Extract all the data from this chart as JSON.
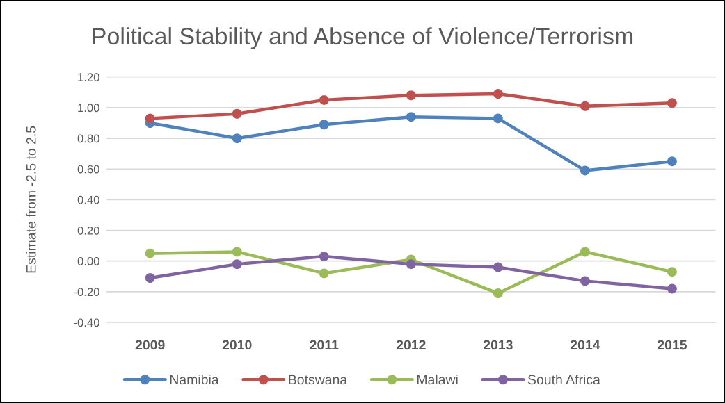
{
  "chart_data": {
    "type": "line",
    "title": "Political Stability and Absence of Violence/Terrorism",
    "ylabel": "Estimate from -2.5 to 2.5",
    "categories": [
      "2009",
      "2010",
      "2011",
      "2012",
      "2013",
      "2014",
      "2015"
    ],
    "series": [
      {
        "name": "Namibia",
        "color": "#4f81bd",
        "values": [
          0.9,
          0.8,
          0.89,
          0.94,
          0.93,
          0.59,
          0.65
        ]
      },
      {
        "name": "Botswana",
        "color": "#c0504d",
        "values": [
          0.93,
          0.96,
          1.05,
          1.08,
          1.09,
          1.01,
          1.03
        ]
      },
      {
        "name": "Malawi",
        "color": "#9bbb59",
        "values": [
          0.05,
          0.06,
          -0.08,
          0.01,
          -0.21,
          0.06,
          -0.07
        ]
      },
      {
        "name": "South Africa",
        "color": "#8064a2",
        "values": [
          -0.11,
          -0.02,
          0.03,
          -0.02,
          -0.04,
          -0.13,
          -0.18
        ]
      }
    ],
    "ylim": [
      -0.4,
      1.2
    ],
    "yticks": [
      {
        "value": -0.4,
        "label": "-0.40"
      },
      {
        "value": -0.2,
        "label": "-0.20"
      },
      {
        "value": 0,
        "label": "0.00"
      },
      {
        "value": 0.2,
        "label": "0.20"
      },
      {
        "value": 0.4,
        "label": "0.40"
      },
      {
        "value": 0.6,
        "label": "0.60"
      },
      {
        "value": 0.8,
        "label": "0.80"
      },
      {
        "value": 1.0,
        "label": "1.00"
      },
      {
        "value": 1.2,
        "label": "1.20"
      }
    ],
    "grid": "y",
    "legend": "bottom",
    "marker": "circle",
    "line_style": "solid"
  }
}
